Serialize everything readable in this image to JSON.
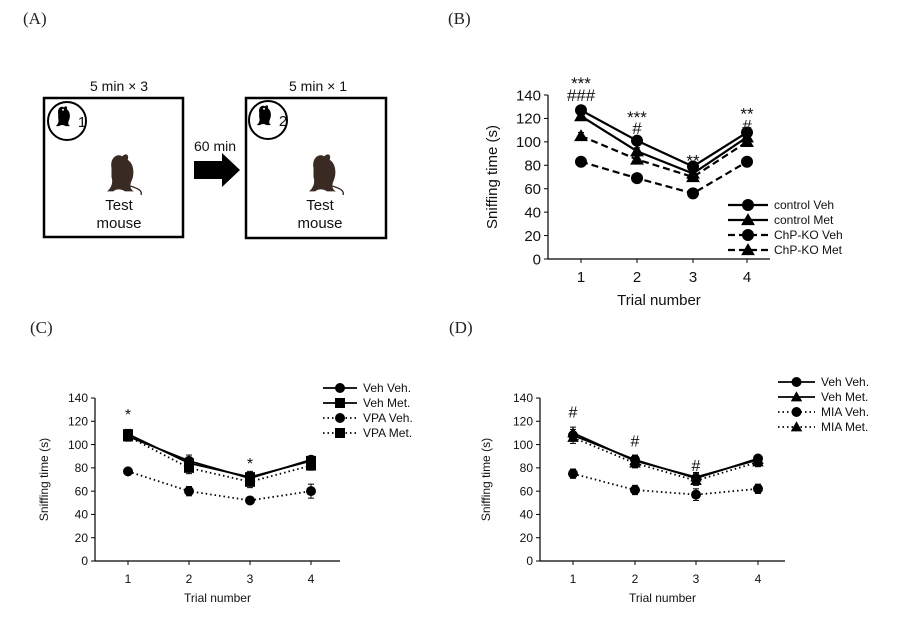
{
  "panels": {
    "a": {
      "label": "(A)",
      "box1_caption": "5 min × 3",
      "box2_caption": "5 min  × 1",
      "arrow_text": "60 min",
      "stim1_number": "1",
      "stim2_number": "2",
      "test_line1": "Test",
      "test_line2": "mouse",
      "mouse_icon": "mouse-icon"
    },
    "b": {
      "label": "(B)"
    },
    "c": {
      "label": "(C)"
    },
    "d": {
      "label": "(D)"
    }
  },
  "colors": {
    "ink": "#000000",
    "mouse": "#3a2a24"
  },
  "chart_data": [
    {
      "panel": "B",
      "type": "line",
      "title": "",
      "xlabel": "Trial number",
      "ylabel": "Sniffing time (s)",
      "categories": [
        "1",
        "2",
        "3",
        "4"
      ],
      "ylim": [
        0,
        140
      ],
      "yticks": [
        0,
        20,
        40,
        60,
        80,
        100,
        120,
        140
      ],
      "grid": false,
      "legend_position": "bottom-right",
      "series": [
        {
          "name": "control Veh",
          "values": [
            127,
            101,
            79,
            108
          ],
          "errors": [
            2,
            3,
            3,
            3
          ],
          "marker": "circle",
          "dash": "solid"
        },
        {
          "name": "control Met",
          "values": [
            122,
            92,
            73,
            104
          ],
          "errors": [
            2,
            3,
            3,
            3
          ],
          "marker": "triangle",
          "dash": "solid"
        },
        {
          "name": "ChP-KO Veh",
          "values": [
            83,
            69,
            56,
            83
          ],
          "errors": [
            2,
            2,
            4,
            2
          ],
          "marker": "circle",
          "dash": "dashed"
        },
        {
          "name": "ChP-KO Met",
          "values": [
            105,
            85,
            70,
            100
          ],
          "errors": [
            3,
            3,
            3,
            3
          ],
          "marker": "triangle",
          "dash": "dashed"
        }
      ],
      "annotations": [
        {
          "x": "1",
          "text": "***",
          "y": 150
        },
        {
          "x": "1",
          "text": "###",
          "y": 140
        },
        {
          "x": "2",
          "text": "***",
          "y": 121
        },
        {
          "x": "2",
          "text": "#",
          "y": 112
        },
        {
          "x": "3",
          "text": "**",
          "y": 84
        },
        {
          "x": "4",
          "text": "**",
          "y": 124
        },
        {
          "x": "4",
          "text": "#",
          "y": 114
        }
      ]
    },
    {
      "panel": "C",
      "type": "line",
      "title": "",
      "xlabel": "Trial number",
      "ylabel": "Sniffing time (s)",
      "categories": [
        "1",
        "2",
        "3",
        "4"
      ],
      "ylim": [
        0,
        140
      ],
      "yticks": [
        0,
        20,
        40,
        60,
        80,
        100,
        120,
        140
      ],
      "grid": false,
      "legend_position": "top-right",
      "series": [
        {
          "name": "Veh Veh.",
          "values": [
            107,
            86,
            71,
            87
          ],
          "errors": [
            4,
            5,
            5,
            3
          ],
          "marker": "circle",
          "dash": "solid"
        },
        {
          "name": "Veh Met.",
          "values": [
            109,
            84,
            72,
            86
          ],
          "errors": [
            4,
            5,
            5,
            3
          ],
          "marker": "square",
          "dash": "solid"
        },
        {
          "name": "VPA Veh.",
          "values": [
            77,
            60,
            52,
            60
          ],
          "errors": [
            2,
            4,
            3,
            6
          ],
          "marker": "circle",
          "dash": "dotted"
        },
        {
          "name": "VPA Met.",
          "values": [
            107,
            80,
            68,
            82
          ],
          "errors": [
            4,
            5,
            5,
            4
          ],
          "marker": "square",
          "dash": "dotted"
        }
      ],
      "annotations": [
        {
          "x": "1",
          "text": "*",
          "y": 126
        },
        {
          "x": "3",
          "text": "*",
          "y": 84
        }
      ]
    },
    {
      "panel": "D",
      "type": "line",
      "title": "",
      "xlabel": "Trial number",
      "ylabel": "Sniffing time (s)",
      "categories": [
        "1",
        "2",
        "3",
        "4"
      ],
      "ylim": [
        0,
        140
      ],
      "yticks": [
        0,
        20,
        40,
        60,
        80,
        100,
        120,
        140
      ],
      "grid": false,
      "legend_position": "top-right",
      "series": [
        {
          "name": "Veh Veh.",
          "values": [
            108,
            87,
            71,
            88
          ],
          "errors": [
            5,
            4,
            4,
            3
          ],
          "marker": "circle",
          "dash": "solid"
        },
        {
          "name": "Veh Met.",
          "values": [
            110,
            86,
            72,
            87
          ],
          "errors": [
            5,
            4,
            4,
            3
          ],
          "marker": "triangle",
          "dash": "solid"
        },
        {
          "name": "MIA Veh.",
          "values": [
            75,
            61,
            57,
            62
          ],
          "errors": [
            4,
            4,
            5,
            4
          ],
          "marker": "circle",
          "dash": "dotted"
        },
        {
          "name": "MIA Met.",
          "values": [
            106,
            84,
            69,
            85
          ],
          "errors": [
            5,
            4,
            4,
            4
          ],
          "marker": "triangle",
          "dash": "dotted"
        }
      ],
      "annotations": [
        {
          "x": "1",
          "text": "#",
          "y": 128
        },
        {
          "x": "2",
          "text": "#",
          "y": 103
        },
        {
          "x": "3",
          "text": "#",
          "y": 82
        }
      ]
    }
  ]
}
